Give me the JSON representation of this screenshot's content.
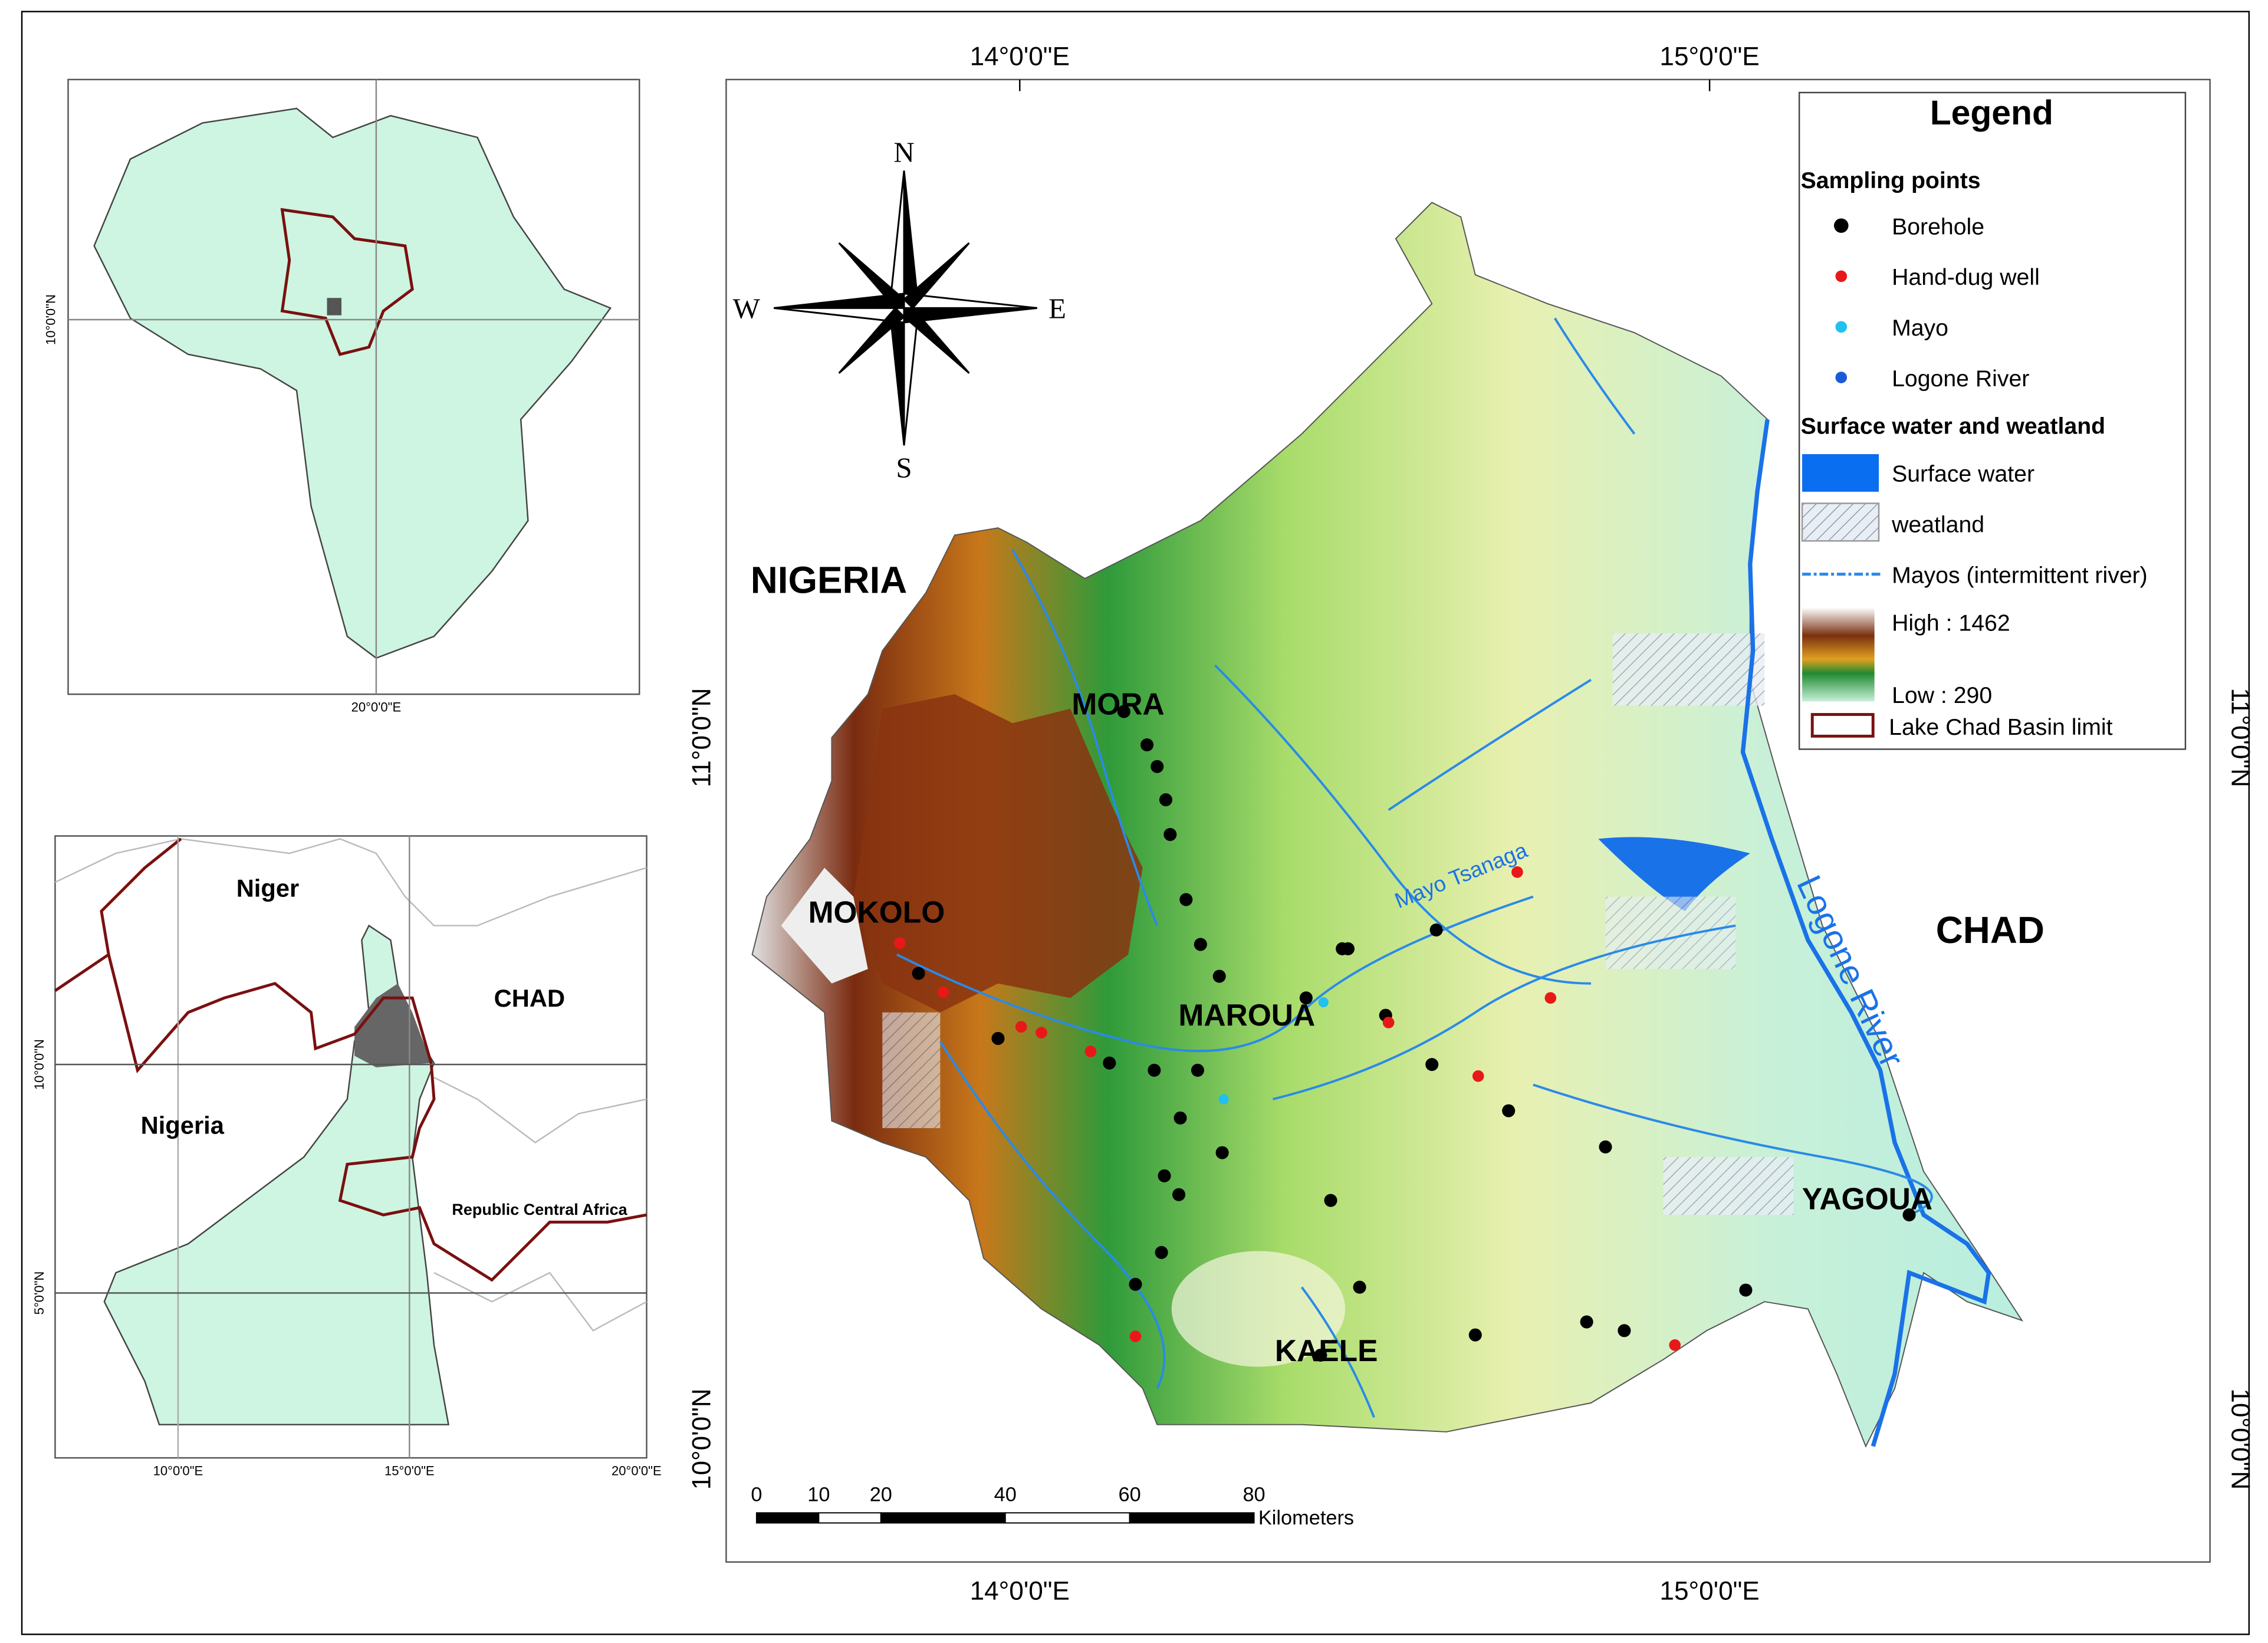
{
  "main_map": {
    "graticule": {
      "top": [
        "14°0'0\"E",
        "15°0'0\"E"
      ],
      "bottom": [
        "14°0'0\"E",
        "15°0'0\"E"
      ],
      "left": [
        "11°0'0\"N",
        "10°0'0\"N"
      ],
      "right": [
        "11°0'0\"N",
        "10°0'0\"N"
      ]
    },
    "compass": {
      "north": "N",
      "south": "S",
      "east": "E",
      "west": "W"
    },
    "places": {
      "nigeria": "NIGERIA",
      "chad": "CHAD",
      "mora": "MORA",
      "mokolo": "MOKOLO",
      "maroua": "MAROUA",
      "kaele": "KAELE",
      "yagoua": "YAGOUA",
      "mayo_tsanaga": "Mayo Tsanaga",
      "logone_river": "Logone River"
    },
    "legend": {
      "title": "Legend",
      "sampling_heading": "Sampling points",
      "borehole": "Borehole",
      "hand_dug_well": "Hand-dug well",
      "mayo": "Mayo",
      "logone_river": "Logone River",
      "surface_heading": "Surface water and weatland",
      "surface_water": "Surface water",
      "wetland": "weatland",
      "mayos": "Mayos (intermittent river)",
      "high": "High : 1462",
      "low": "Low : 290",
      "basin_limit": "Lake Chad Basin limit"
    },
    "scale_bar": {
      "ticks": [
        0,
        10,
        20,
        40,
        60,
        80
      ],
      "unit": "Kilometers"
    }
  },
  "inset_africa": {
    "lat_label": "10°0'0\"N",
    "lon_label": "20°0'0\"E"
  },
  "inset_cameroon": {
    "niger": "Niger",
    "chad": "CHAD",
    "nigeria": "Nigeria",
    "car": "Republic Central Africa",
    "lat_labels": [
      "10°0'0\"N",
      "5°0'0\"N"
    ],
    "lon_labels": [
      "10°0'0\"E",
      "15°0'0\"E",
      "20°0'0\"E"
    ]
  }
}
